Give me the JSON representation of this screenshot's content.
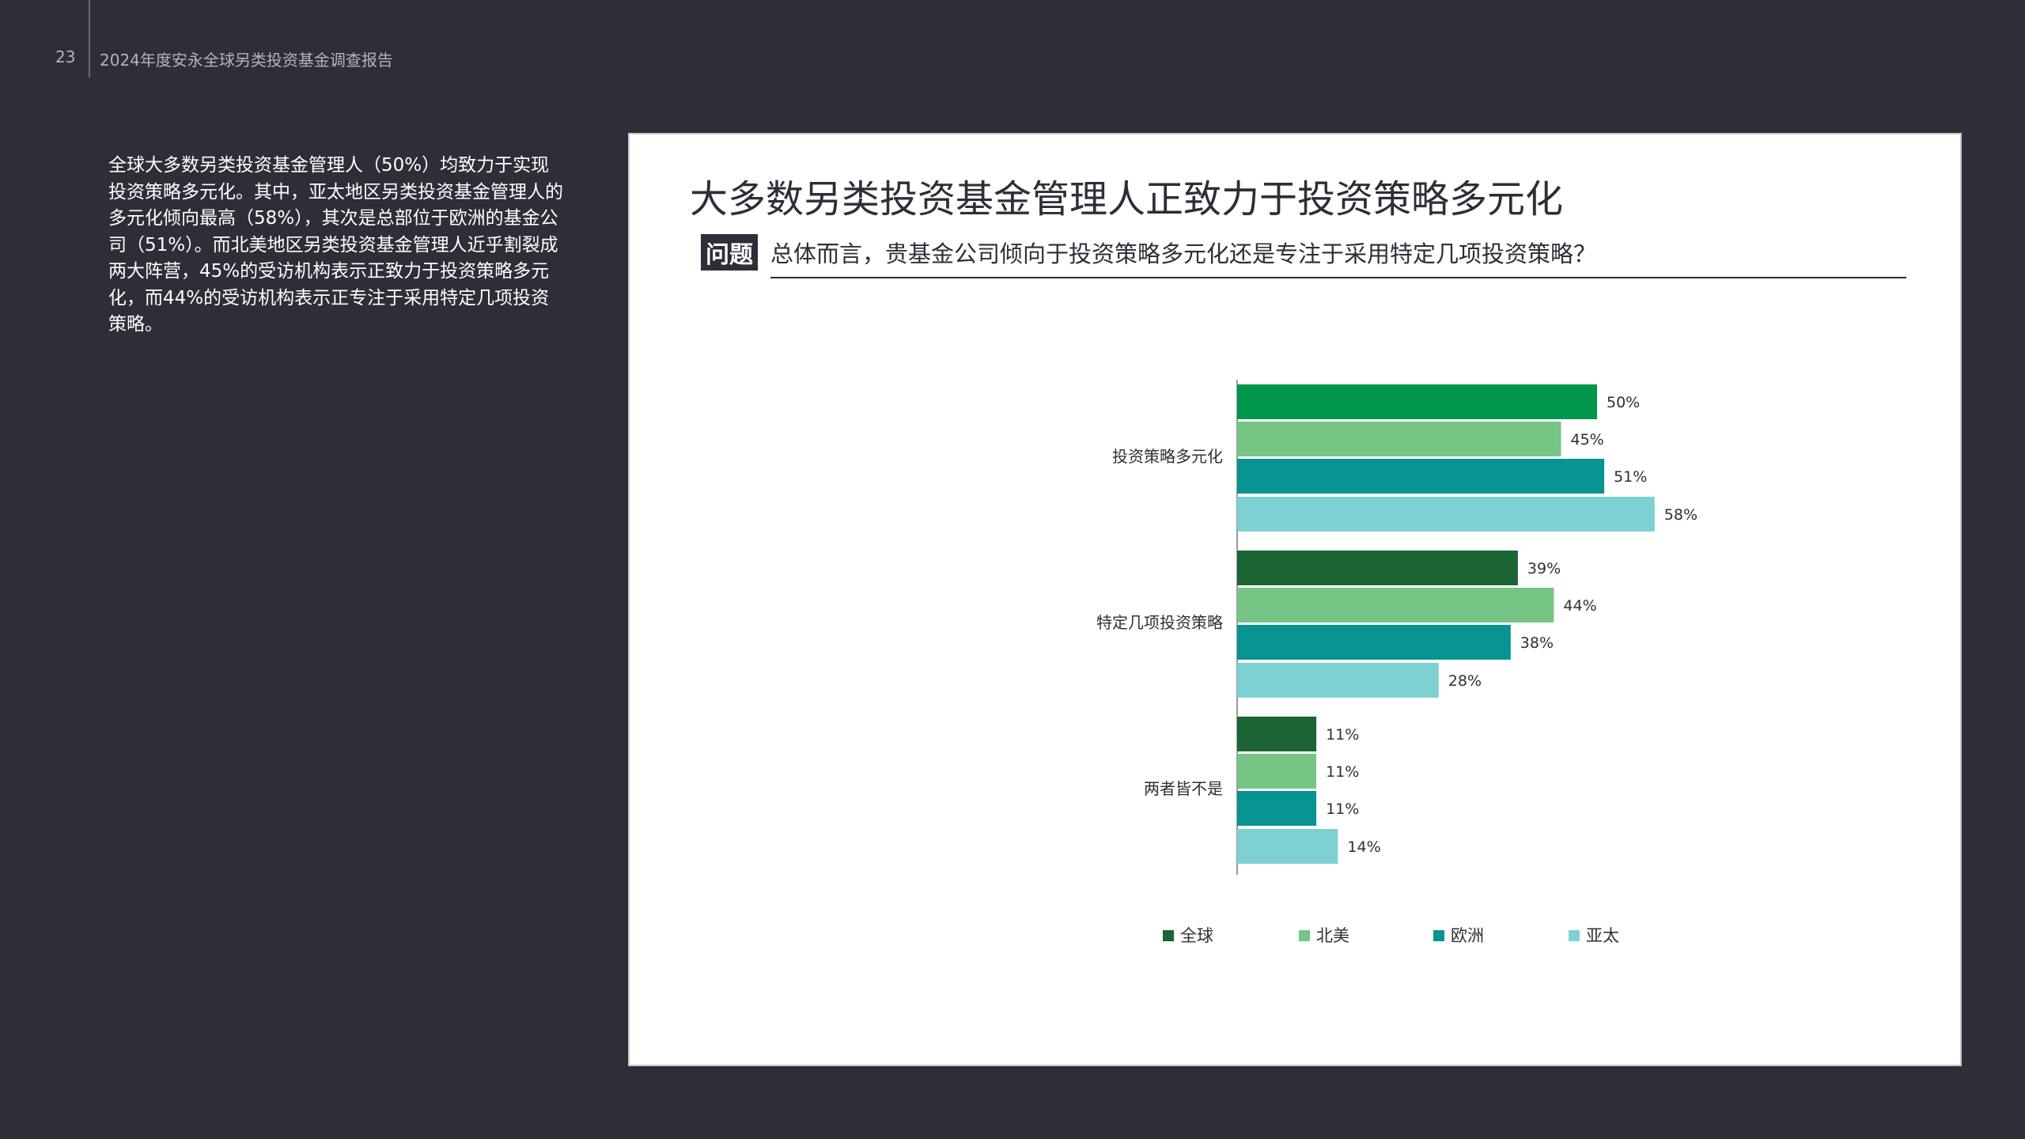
{
  "header": {
    "page_number": "23",
    "report_title": "2024年度安永全球另类投资基金调查报告"
  },
  "intro": {
    "text": "全球大多数另类投资基金管理人（50%）均致力于实现投资策略多元化。其中，亚太地区另类投资基金管理人的多元化倾向最高（58%），其次是总部位于欧洲的基金公司（51%）。而北美地区另类投资基金管理人近乎割裂成两大阵营，45%的受访机构表示正致力于投资策略多元化，而44%的受访机构表示正专注于采用特定几项投资策略。"
  },
  "panel": {
    "question_label": "问题",
    "question": "总体而言，贵基金公司倾向于投资策略多元化还是专注于采用特定几项投资策略？"
  },
  "chart_data": {
    "type": "bar",
    "orientation": "horizontal",
    "title": "大多数另类投资基金管理人正致力于投资策略多元化",
    "categories": [
      "投资策略多元化",
      "特定几项投资策略",
      "两者皆不是"
    ],
    "series": [
      {
        "name": "全球",
        "color": "#1b6535",
        "values": [
          50,
          39,
          11
        ]
      },
      {
        "name": "北美",
        "color": "#76c585",
        "values": [
          45,
          44,
          11
        ]
      },
      {
        "name": "欧洲",
        "color": "#069391",
        "values": [
          51,
          38,
          11
        ]
      },
      {
        "name": "亚太",
        "color": "#7dd1d3",
        "values": [
          58,
          28,
          14
        ]
      }
    ],
    "series_color_overrides": {
      "0": {
        "0": "#00964b"
      }
    },
    "value_suffix": "%",
    "xlim": [
      0,
      100
    ],
    "grid": false,
    "legend": "bottom"
  }
}
